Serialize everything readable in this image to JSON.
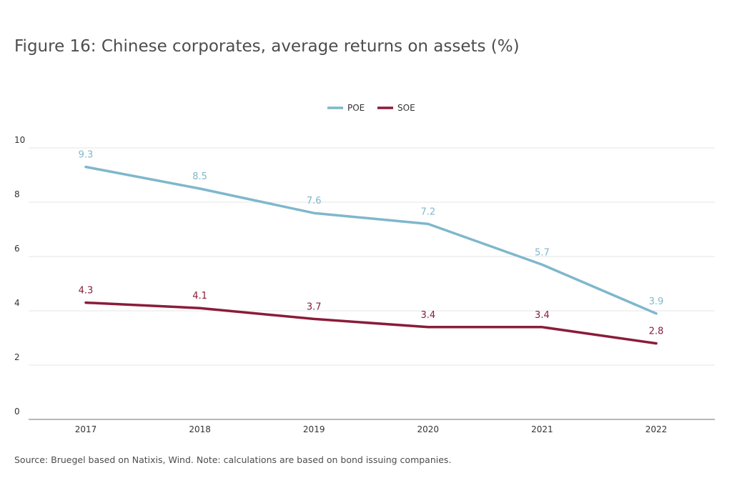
{
  "title": "Figure 16: Chinese corporates, average returns on assets (%)",
  "source": "Source: Bruegel based on Natixis, Wind. Note: calculations are based on bond issuing companies.",
  "chart_data": {
    "type": "line",
    "title": "Figure 16: Chinese corporates, average returns on assets (%)",
    "xlabel": "",
    "ylabel": "",
    "categories": [
      "2017",
      "2018",
      "2019",
      "2020",
      "2021",
      "2022"
    ],
    "ylim": [
      0,
      10
    ],
    "yticks": [
      "0",
      "2",
      "4",
      "6",
      "8",
      "10"
    ],
    "grid": true,
    "legend_position": "top-center",
    "series": [
      {
        "name": "POE",
        "color": "#7fb7cc",
        "values": [
          9.3,
          8.5,
          7.6,
          7.2,
          5.7,
          3.9
        ],
        "labels": [
          "9.3",
          "8.5",
          "7.6",
          "7.2",
          "5.7",
          "3.9"
        ]
      },
      {
        "name": "SOE",
        "color": "#8a1c3a",
        "values": [
          4.3,
          4.1,
          3.7,
          3.4,
          3.4,
          2.8
        ],
        "labels": [
          "4.3",
          "4.1",
          "3.7",
          "3.4",
          "3.4",
          "2.8"
        ]
      }
    ]
  }
}
